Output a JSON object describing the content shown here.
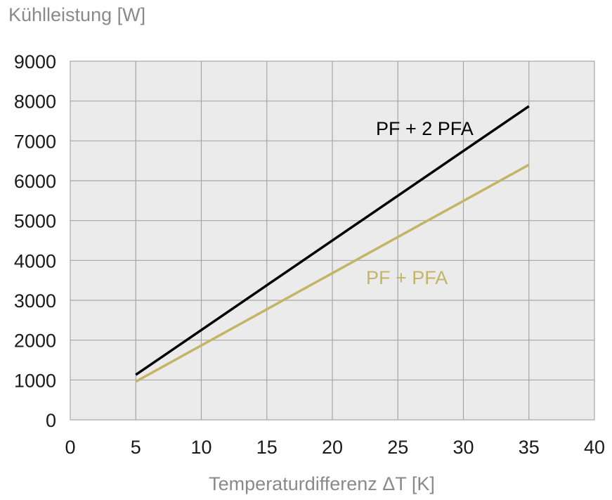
{
  "chart_data": {
    "type": "line",
    "title": "",
    "ylabel": "Kühlleistung [W]",
    "xlabel": "Temperaturdifferenz ΔT [K]",
    "xlim": [
      0,
      40
    ],
    "ylim": [
      0,
      9000
    ],
    "xticks": [
      0,
      5,
      10,
      15,
      20,
      25,
      30,
      35,
      40
    ],
    "yticks": [
      0,
      1000,
      2000,
      3000,
      4000,
      5000,
      6000,
      7000,
      8000,
      9000
    ],
    "grid": true,
    "plot_background": "#ebebeb",
    "grid_color": "#a6a6a6",
    "series": [
      {
        "name": "PF + 2 PFA",
        "color": "#000000",
        "x": [
          5,
          35
        ],
        "y": [
          1130,
          7870
        ]
      },
      {
        "name": "PF + PFA",
        "color": "#c3b565",
        "x": [
          5,
          35
        ],
        "y": [
          960,
          6400
        ]
      }
    ]
  }
}
